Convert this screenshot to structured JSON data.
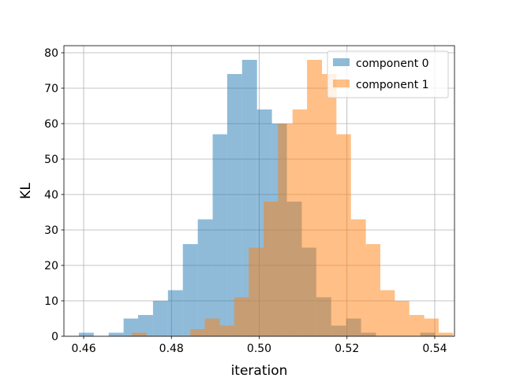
{
  "chart_data": {
    "type": "histogram",
    "xlabel": "iteration",
    "ylabel": "KL",
    "xlim": [
      0.4555,
      0.5445
    ],
    "ylim": [
      0,
      82
    ],
    "xticks": [
      0.46,
      0.48,
      0.5,
      0.52,
      0.54
    ],
    "xtick_labels": [
      "0.46",
      "0.48",
      "0.50",
      "0.52",
      "0.54"
    ],
    "yticks": [
      0,
      10,
      20,
      30,
      40,
      50,
      60,
      70,
      80
    ],
    "ytick_labels": [
      "0",
      "10",
      "20",
      "30",
      "40",
      "50",
      "60",
      "70",
      "80"
    ],
    "grid": true,
    "legend_position": "top-right",
    "series": [
      {
        "name": "component 0",
        "color": "#1f77b4",
        "opacity": 0.5,
        "bins": [
          [
            0.4589,
            0.4623,
            1
          ],
          [
            0.4623,
            0.4657,
            0
          ],
          [
            0.4657,
            0.4691,
            1
          ],
          [
            0.4691,
            0.4724,
            5
          ],
          [
            0.4724,
            0.4758,
            6
          ],
          [
            0.4758,
            0.4792,
            10
          ],
          [
            0.4792,
            0.4826,
            13
          ],
          [
            0.4826,
            0.486,
            26
          ],
          [
            0.486,
            0.4894,
            33
          ],
          [
            0.4894,
            0.4927,
            57
          ],
          [
            0.4927,
            0.4961,
            74
          ],
          [
            0.4961,
            0.4995,
            78
          ],
          [
            0.4995,
            0.5029,
            64
          ],
          [
            0.5029,
            0.5063,
            60
          ],
          [
            0.5063,
            0.5097,
            38
          ],
          [
            0.5097,
            0.513,
            25
          ],
          [
            0.513,
            0.5164,
            11
          ],
          [
            0.5164,
            0.5198,
            3
          ],
          [
            0.5198,
            0.5232,
            5
          ],
          [
            0.5232,
            0.5266,
            1
          ],
          [
            0.5266,
            0.53,
            0
          ],
          [
            0.53,
            0.5334,
            0
          ],
          [
            0.5334,
            0.5367,
            0
          ],
          [
            0.5367,
            0.5401,
            1
          ]
        ]
      },
      {
        "name": "component 1",
        "color": "#ff7f0e",
        "opacity": 0.5,
        "bins": [
          [
            0.471,
            0.4743,
            1
          ],
          [
            0.4743,
            0.4777,
            0
          ],
          [
            0.4777,
            0.481,
            0
          ],
          [
            0.481,
            0.4843,
            0
          ],
          [
            0.4843,
            0.4876,
            2
          ],
          [
            0.4876,
            0.491,
            5
          ],
          [
            0.491,
            0.4943,
            3
          ],
          [
            0.4943,
            0.4976,
            11
          ],
          [
            0.4976,
            0.501,
            25
          ],
          [
            0.501,
            0.5043,
            38
          ],
          [
            0.5043,
            0.5076,
            60
          ],
          [
            0.5076,
            0.5109,
            64
          ],
          [
            0.5109,
            0.5143,
            78
          ],
          [
            0.5143,
            0.5176,
            74
          ],
          [
            0.5176,
            0.5209,
            57
          ],
          [
            0.5209,
            0.5243,
            33
          ],
          [
            0.5243,
            0.5276,
            26
          ],
          [
            0.5276,
            0.5309,
            13
          ],
          [
            0.5309,
            0.5342,
            10
          ],
          [
            0.5342,
            0.5376,
            6
          ],
          [
            0.5376,
            0.5409,
            5
          ],
          [
            0.5409,
            0.5442,
            1
          ]
        ]
      }
    ]
  }
}
